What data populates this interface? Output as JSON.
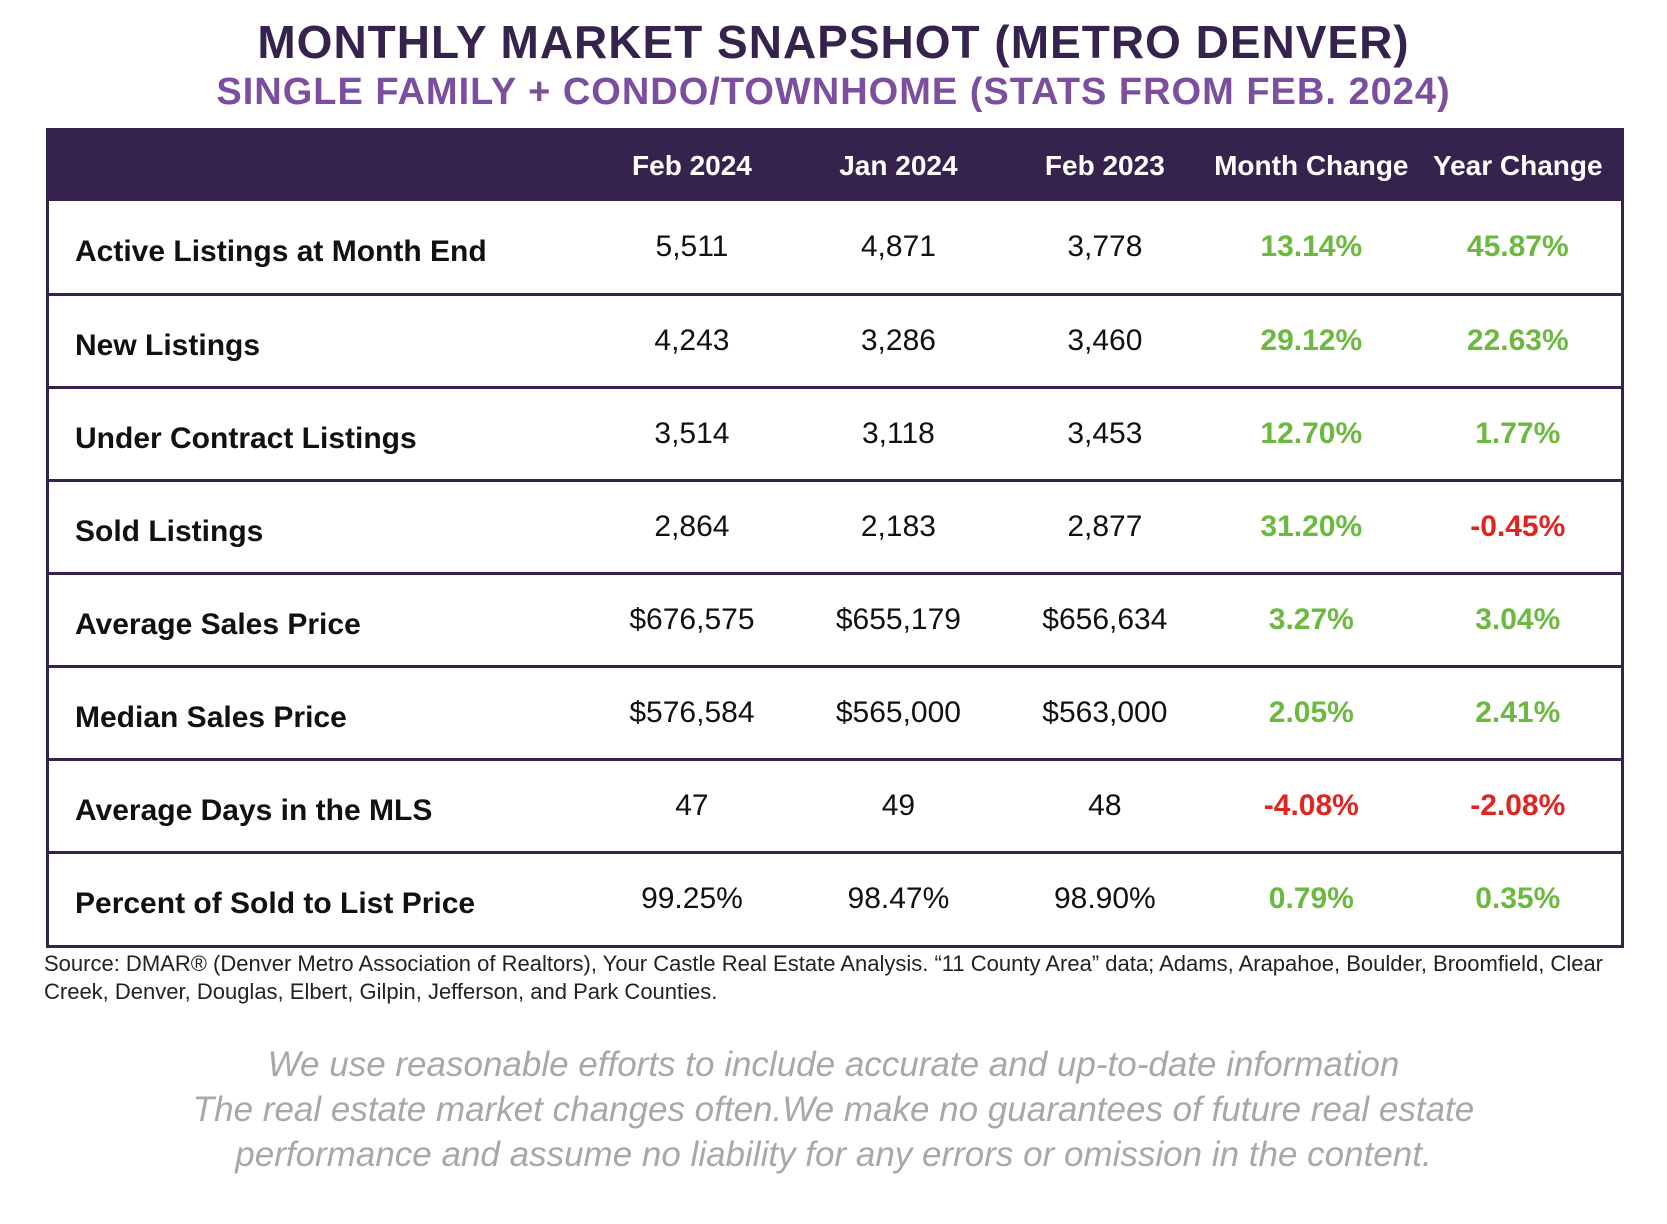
{
  "title": "MONTHLY MARKET SNAPSHOT (METRO DENVER)",
  "subtitle": "SINGLE FAMILY + CONDO/TOWNHOME (STATS FROM FEB. 2024)",
  "colors": {
    "header_bg": "#36234d",
    "subtitle": "#7b4ea0",
    "positive": "#6cb93f",
    "negative": "#e0241f",
    "disclaimer": "#a8a8a8"
  },
  "table": {
    "headers": [
      "",
      "Feb 2024",
      "Jan 2024",
      "Feb 2023",
      "Month Change",
      "Year Change"
    ],
    "rows": [
      {
        "metric": "Active Listings at Month End",
        "feb2024": "5,511",
        "jan2024": "4,871",
        "feb2023": "3,778",
        "month_change": "13.14%",
        "month_dir": "pos",
        "year_change": "45.87%",
        "year_dir": "pos"
      },
      {
        "metric": "New Listings",
        "feb2024": "4,243",
        "jan2024": "3,286",
        "feb2023": "3,460",
        "month_change": "29.12%",
        "month_dir": "pos",
        "year_change": "22.63%",
        "year_dir": "pos"
      },
      {
        "metric": "Under Contract Listings",
        "feb2024": "3,514",
        "jan2024": "3,118",
        "feb2023": "3,453",
        "month_change": "12.70%",
        "month_dir": "pos",
        "year_change": "1.77%",
        "year_dir": "pos"
      },
      {
        "metric": "Sold Listings",
        "feb2024": "2,864",
        "jan2024": "2,183",
        "feb2023": "2,877",
        "month_change": "31.20%",
        "month_dir": "pos",
        "year_change": "-0.45%",
        "year_dir": "neg"
      },
      {
        "metric": "Average Sales Price",
        "feb2024": "$676,575",
        "jan2024": "$655,179",
        "feb2023": "$656,634",
        "month_change": "3.27%",
        "month_dir": "pos",
        "year_change": "3.04%",
        "year_dir": "pos"
      },
      {
        "metric": "Median Sales Price",
        "feb2024": "$576,584",
        "jan2024": "$565,000",
        "feb2023": "$563,000",
        "month_change": "2.05%",
        "month_dir": "pos",
        "year_change": "2.41%",
        "year_dir": "pos"
      },
      {
        "metric": "Average Days in the MLS",
        "feb2024": "47",
        "jan2024": "49",
        "feb2023": "48",
        "month_change": "-4.08%",
        "month_dir": "neg",
        "year_change": "-2.08%",
        "year_dir": "neg"
      },
      {
        "metric": "Percent of Sold to List Price",
        "feb2024": "99.25%",
        "jan2024": "98.47%",
        "feb2023": "98.90%",
        "month_change": "0.79%",
        "month_dir": "pos",
        "year_change": "0.35%",
        "year_dir": "pos"
      }
    ]
  },
  "source": "Source: DMAR® (Denver Metro Association of Realtors), Your Castle Real Estate Analysis. “11 County Area” data; Adams, Arapahoe, Boulder, Broomfield, Clear Creek, Denver, Douglas, Elbert, Gilpin, Jefferson, and Park Counties.",
  "disclaimer": [
    "We use reasonable efforts to include accurate and up-to-date information",
    "The real estate market changes often.We make no guarantees of future real estate",
    "performance and assume no liability for any errors or omission in the content."
  ]
}
